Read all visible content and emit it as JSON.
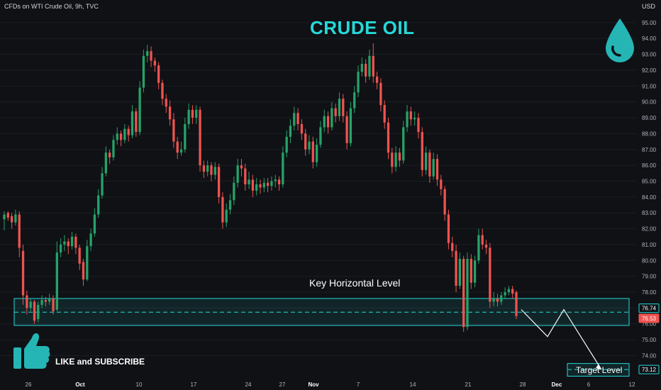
{
  "header": {
    "symbol_info": "CFDs on WTI Crude Oil, 9h, TVC",
    "currency": "USD"
  },
  "annotations": {
    "title": "CRUDE OIL",
    "key_level_label": "Key Horizontal Level",
    "target_level_label": "Target Level",
    "like_label": "LIKE and SUBSCRIBE"
  },
  "icons": {
    "drop": "water-drop-icon",
    "thumb": "thumbs-up-icon"
  },
  "colors": {
    "background": "#0f1115",
    "up": "#26a269",
    "down": "#ef5350",
    "accent": "#26d9d9"
  },
  "chart_data": {
    "type": "candlestick",
    "ylim": [
      72.5,
      95.8
    ],
    "y_ticks": [
      74,
      75,
      76,
      77,
      78,
      79,
      80,
      81,
      82,
      83,
      84,
      85,
      86,
      87,
      88,
      89,
      90,
      91,
      92,
      93,
      94,
      95
    ],
    "x_tick_labels": [
      "26",
      "Oct",
      "10",
      "17",
      "24",
      "27",
      "Nov",
      "7",
      "14",
      "21",
      "28",
      "Dec",
      "6",
      "12"
    ],
    "price_badges": [
      {
        "value": "76.74",
        "color": "#26d9d9"
      },
      {
        "value": "76.53",
        "color": "#ef5350"
      },
      {
        "value": "73.12",
        "color": "#26d9d9"
      }
    ],
    "key_zone": {
      "low": 75.9,
      "high": 77.6,
      "level": 76.74
    },
    "target_zone": {
      "low": 72.7,
      "high": 73.5,
      "level": 73.12
    },
    "projection_path": [
      76.9,
      75.2,
      76.9,
      73.12
    ],
    "candles": [
      [
        82.6,
        82.9,
        81.9,
        83.1
      ],
      [
        83.0,
        82.7,
        82.5,
        83.1
      ],
      [
        82.8,
        82.4,
        82.0,
        83.0
      ],
      [
        82.4,
        82.9,
        82.2,
        83.2
      ],
      [
        82.9,
        80.8,
        80.2,
        83.1
      ],
      [
        80.6,
        77.8,
        77.2,
        81.0
      ],
      [
        77.8,
        77.0,
        76.6,
        78.1
      ],
      [
        77.0,
        77.4,
        76.8,
        77.6
      ],
      [
        77.4,
        76.2,
        76.0,
        77.5
      ],
      [
        76.3,
        77.2,
        76.1,
        77.4
      ],
      [
        77.2,
        77.5,
        77.0,
        77.8
      ],
      [
        77.5,
        77.4,
        77.1,
        77.7
      ],
      [
        77.4,
        77.6,
        77.2,
        77.9
      ],
      [
        77.6,
        76.8,
        76.6,
        77.8
      ],
      [
        76.9,
        80.5,
        76.8,
        81.2
      ],
      [
        80.5,
        81.0,
        80.2,
        81.4
      ],
      [
        81.0,
        81.2,
        80.6,
        81.6
      ],
      [
        81.2,
        80.9,
        80.4,
        81.4
      ],
      [
        80.9,
        81.5,
        80.7,
        81.8
      ],
      [
        81.5,
        80.8,
        80.4,
        81.7
      ],
      [
        80.8,
        79.8,
        79.4,
        81.0
      ],
      [
        79.9,
        78.8,
        78.4,
        80.1
      ],
      [
        78.8,
        80.9,
        78.7,
        81.3
      ],
      [
        80.9,
        81.7,
        80.6,
        82.0
      ],
      [
        81.7,
        82.9,
        81.5,
        83.3
      ],
      [
        82.9,
        84.1,
        82.7,
        84.5
      ],
      [
        84.1,
        85.5,
        83.9,
        85.9
      ],
      [
        85.5,
        86.8,
        85.3,
        87.2
      ],
      [
        86.8,
        86.5,
        86.1,
        87.0
      ],
      [
        86.5,
        87.6,
        86.3,
        87.9
      ],
      [
        87.6,
        88.0,
        87.3,
        88.4
      ],
      [
        88.0,
        87.6,
        87.2,
        88.2
      ],
      [
        87.6,
        88.3,
        87.4,
        88.6
      ],
      [
        88.3,
        87.9,
        87.5,
        88.5
      ],
      [
        87.9,
        89.4,
        87.7,
        89.8
      ],
      [
        89.4,
        88.1,
        87.8,
        89.6
      ],
      [
        88.1,
        90.9,
        87.9,
        91.3
      ],
      [
        90.9,
        92.9,
        90.6,
        93.3
      ],
      [
        92.9,
        93.2,
        92.5,
        93.6
      ],
      [
        93.2,
        92.6,
        92.2,
        93.5
      ],
      [
        92.6,
        92.3,
        91.9,
        92.8
      ],
      [
        92.3,
        91.2,
        90.8,
        92.5
      ],
      [
        91.2,
        90.2,
        89.8,
        91.4
      ],
      [
        90.2,
        89.7,
        89.3,
        90.5
      ],
      [
        89.7,
        88.9,
        88.5,
        90.1
      ],
      [
        88.9,
        87.5,
        87.1,
        89.3
      ],
      [
        87.5,
        86.8,
        86.4,
        87.8
      ],
      [
        86.8,
        87.0,
        86.6,
        87.5
      ],
      [
        87.0,
        88.6,
        86.8,
        89.0
      ],
      [
        88.6,
        89.5,
        88.3,
        89.9
      ],
      [
        89.5,
        89.0,
        88.6,
        89.8
      ],
      [
        89.0,
        89.5,
        88.6,
        89.8
      ],
      [
        89.5,
        86.0,
        85.6,
        89.7
      ],
      [
        86.0,
        85.6,
        85.2,
        86.3
      ],
      [
        85.6,
        86.0,
        85.3,
        86.3
      ],
      [
        86.0,
        85.4,
        85.0,
        86.2
      ],
      [
        85.4,
        85.9,
        85.1,
        86.2
      ],
      [
        85.9,
        84.0,
        83.6,
        86.1
      ],
      [
        84.0,
        82.4,
        82.0,
        84.3
      ],
      [
        82.4,
        83.2,
        82.1,
        83.6
      ],
      [
        83.2,
        83.8,
        82.9,
        84.2
      ],
      [
        83.8,
        84.9,
        83.5,
        85.3
      ],
      [
        84.9,
        86.0,
        84.6,
        86.4
      ],
      [
        86.0,
        85.8,
        85.3,
        86.4
      ],
      [
        85.8,
        84.8,
        84.4,
        86.1
      ],
      [
        84.8,
        85.1,
        84.5,
        85.6
      ],
      [
        85.1,
        84.4,
        84.0,
        85.4
      ],
      [
        84.4,
        84.8,
        84.1,
        85.2
      ],
      [
        84.8,
        84.6,
        84.2,
        85.1
      ],
      [
        84.6,
        84.9,
        84.3,
        85.2
      ],
      [
        84.9,
        84.7,
        84.3,
        85.2
      ],
      [
        84.7,
        85.0,
        84.4,
        85.3
      ],
      [
        85.0,
        85.1,
        84.6,
        85.4
      ],
      [
        85.1,
        84.8,
        84.4,
        85.3
      ],
      [
        84.8,
        86.8,
        84.6,
        87.2
      ],
      [
        86.8,
        87.8,
        86.5,
        88.2
      ],
      [
        87.8,
        88.5,
        87.4,
        88.9
      ],
      [
        88.5,
        89.3,
        88.2,
        89.7
      ],
      [
        89.3,
        88.6,
        88.2,
        89.6
      ],
      [
        88.6,
        88.0,
        87.6,
        88.9
      ],
      [
        88.0,
        87.0,
        86.6,
        88.3
      ],
      [
        87.0,
        87.5,
        86.7,
        87.9
      ],
      [
        87.5,
        86.2,
        85.8,
        87.8
      ],
      [
        86.2,
        87.3,
        85.9,
        87.7
      ],
      [
        87.3,
        88.4,
        87.1,
        88.8
      ],
      [
        88.4,
        89.1,
        88.1,
        89.5
      ],
      [
        89.1,
        88.4,
        88.0,
        89.4
      ],
      [
        88.4,
        89.6,
        88.2,
        90.0
      ],
      [
        89.6,
        89.1,
        88.7,
        89.9
      ],
      [
        89.1,
        90.2,
        88.8,
        90.6
      ],
      [
        90.2,
        89.1,
        88.7,
        90.5
      ],
      [
        89.1,
        87.4,
        87.0,
        89.4
      ],
      [
        87.4,
        89.6,
        87.2,
        90.0
      ],
      [
        89.6,
        90.6,
        89.3,
        91.0
      ],
      [
        90.6,
        91.9,
        90.3,
        92.3
      ],
      [
        91.9,
        92.4,
        91.6,
        92.8
      ],
      [
        92.4,
        91.6,
        91.2,
        92.7
      ],
      [
        91.6,
        92.9,
        91.4,
        93.3
      ],
      [
        92.9,
        91.6,
        91.2,
        93.7
      ],
      [
        91.6,
        91.2,
        90.8,
        91.9
      ],
      [
        91.2,
        89.8,
        89.4,
        91.5
      ],
      [
        89.8,
        88.7,
        88.3,
        90.1
      ],
      [
        88.7,
        86.8,
        86.4,
        89.0
      ],
      [
        86.8,
        85.9,
        85.5,
        87.1
      ],
      [
        85.9,
        86.8,
        85.6,
        87.2
      ],
      [
        86.8,
        86.3,
        85.9,
        87.1
      ],
      [
        86.3,
        88.4,
        86.1,
        88.8
      ],
      [
        88.4,
        89.4,
        88.1,
        89.8
      ],
      [
        89.4,
        88.9,
        88.5,
        89.7
      ],
      [
        88.9,
        89.0,
        88.5,
        89.4
      ],
      [
        89.0,
        88.1,
        87.7,
        89.3
      ],
      [
        88.1,
        85.7,
        85.3,
        88.4
      ],
      [
        85.7,
        86.8,
        85.4,
        87.2
      ],
      [
        86.8,
        85.3,
        84.9,
        87.0
      ],
      [
        85.3,
        86.4,
        85.1,
        86.8
      ],
      [
        86.4,
        85.1,
        84.7,
        86.7
      ],
      [
        85.1,
        84.5,
        84.1,
        85.4
      ],
      [
        84.5,
        82.9,
        82.5,
        84.7
      ],
      [
        82.9,
        81.1,
        80.7,
        83.2
      ],
      [
        81.1,
        80.6,
        80.2,
        81.5
      ],
      [
        80.6,
        78.4,
        78.0,
        81.0
      ],
      [
        78.4,
        80.1,
        78.2,
        80.5
      ],
      [
        80.1,
        75.8,
        75.5,
        80.3
      ],
      [
        75.8,
        80.1,
        75.6,
        80.5
      ],
      [
        80.1,
        78.6,
        78.2,
        80.4
      ],
      [
        78.6,
        80.0,
        78.3,
        80.3
      ],
      [
        80.0,
        81.6,
        79.8,
        82.0
      ],
      [
        81.6,
        81.0,
        80.7,
        82.0
      ],
      [
        81.0,
        80.8,
        80.4,
        81.3
      ],
      [
        80.8,
        77.4,
        77.0,
        81.1
      ],
      [
        77.4,
        77.6,
        77.1,
        78.0
      ],
      [
        77.6,
        77.4,
        77.1,
        77.9
      ],
      [
        77.4,
        77.8,
        77.2,
        78.0
      ],
      [
        77.8,
        78.0,
        77.6,
        78.3
      ],
      [
        78.0,
        78.2,
        77.8,
        78.4
      ],
      [
        78.2,
        77.9,
        77.6,
        78.4
      ],
      [
        78.0,
        76.5,
        76.3,
        78.1
      ]
    ]
  }
}
